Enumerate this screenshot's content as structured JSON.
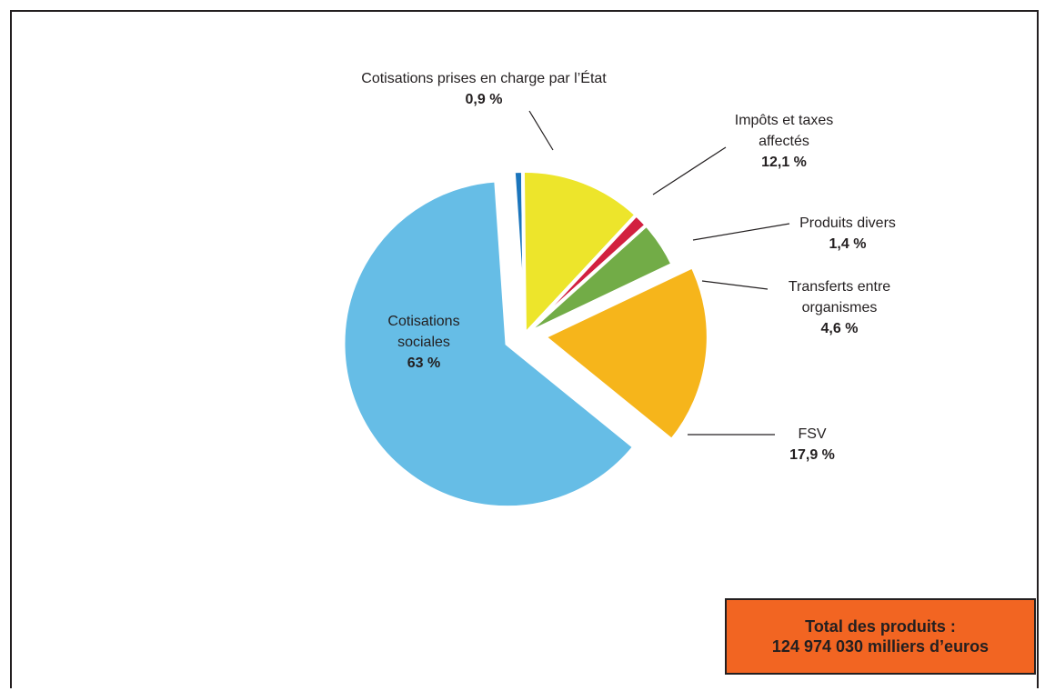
{
  "chart_data": {
    "type": "pie",
    "unit": "%",
    "start_angle_deg": -3.9,
    "exploded_slices": [
      "Cotisations sociales",
      "FSV"
    ],
    "slices": [
      {
        "label_lines": [
          "Cotisations prises en charge par l’État"
        ],
        "value": 0.9,
        "value_label": "0,9 %",
        "color": "#1b75bc"
      },
      {
        "label_lines": [
          "Impôts et taxes",
          "affectés"
        ],
        "value": 12.1,
        "value_label": "12,1 %",
        "color": "#ede52b"
      },
      {
        "label_lines": [
          "Produits divers"
        ],
        "value": 1.4,
        "value_label": "1,4 %",
        "color": "#d2203f"
      },
      {
        "label_lines": [
          "Transferts entre",
          "organismes"
        ],
        "value": 4.6,
        "value_label": "4,6 %",
        "color": "#72ac47"
      },
      {
        "label_lines": [
          "FSV"
        ],
        "value": 17.9,
        "value_label": "17,9 %",
        "color": "#f6b51b"
      },
      {
        "label_lines": [
          "Cotisations",
          "sociales"
        ],
        "value": 63,
        "value_label": "63 %",
        "color": "#66bde6"
      }
    ]
  },
  "total_box": {
    "line1": "Total des produits :",
    "line2": "124 974 030 milliers d’euros",
    "color": "#f26522"
  }
}
